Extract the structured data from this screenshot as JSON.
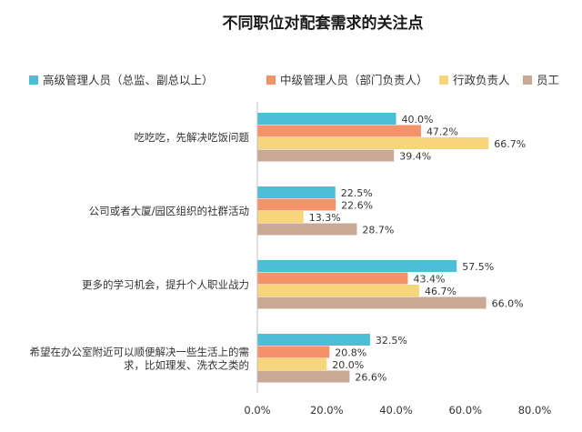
{
  "chart_data": {
    "type": "bar",
    "orientation": "horizontal",
    "title": "不同职位对配套需求的关注点",
    "categories": [
      "吃吃吃，先解决吃饭问题",
      "公司或者大厦/园区组织的社群活动",
      "更多的学习机会，提升个人职业战力",
      "希望在办公室附近可以顺便解决一些生活上的需求，比如理发、洗衣之类的"
    ],
    "category_lines": [
      [
        "吃吃吃，先解决吃饭问题"
      ],
      [
        "公司或者大厦/园区组织的社群活动"
      ],
      [
        "更多的学习机会，提升个人职业战力"
      ],
      [
        "希望在办公室附近可以顺便解决一些生活上的需",
        "求，比如理发、洗衣之类的"
      ]
    ],
    "series": [
      {
        "name": "高级管理人员（总监、副总以上）",
        "color": "#4BBFD6",
        "values": [
          40.0,
          22.5,
          57.5,
          32.5
        ],
        "labels": [
          "40.0%",
          "22.5%",
          "57.5%",
          "32.5%"
        ]
      },
      {
        "name": "中级管理人员（部门负责人）",
        "color": "#F4926A",
        "values": [
          47.2,
          22.6,
          43.4,
          20.8
        ],
        "labels": [
          "47.2%",
          "22.6%",
          "43.4%",
          "20.8%"
        ]
      },
      {
        "name": "行政负责人",
        "color": "#F7D57A",
        "values": [
          66.7,
          13.3,
          46.7,
          20.0
        ],
        "labels": [
          "66.7%",
          "13.3%",
          "46.7%",
          "20.0%"
        ]
      },
      {
        "name": "员工",
        "color": "#C9A896",
        "values": [
          39.4,
          28.7,
          66.0,
          26.6
        ],
        "labels": [
          "39.4%",
          "28.7%",
          "66.0%",
          "26.6%"
        ]
      }
    ],
    "xlim": [
      0,
      80
    ],
    "x_ticks": [
      0,
      20,
      40,
      60,
      80
    ],
    "x_tick_labels": [
      "0.0%",
      "20.0%",
      "40.0%",
      "60.0%",
      "80.0%"
    ],
    "xlabel": "",
    "ylabel": "",
    "grid": false,
    "legend_position": "top"
  }
}
